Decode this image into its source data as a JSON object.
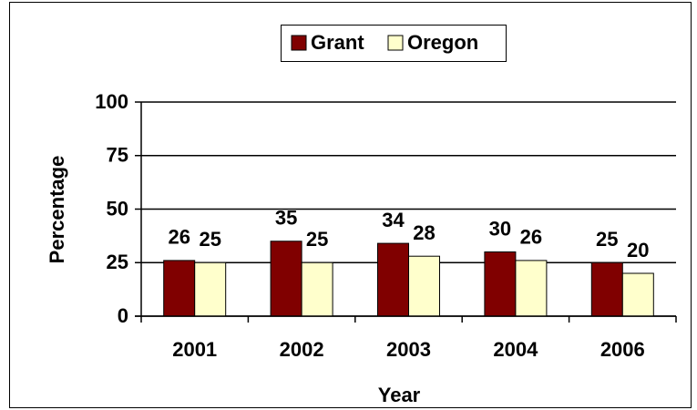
{
  "chart_data": {
    "type": "bar",
    "categories": [
      "2001",
      "2002",
      "2003",
      "2004",
      "2006"
    ],
    "series": [
      {
        "name": "Grant",
        "color": "#800000",
        "values": [
          26,
          35,
          34,
          30,
          25
        ]
      },
      {
        "name": "Oregon",
        "color": "#ffffcc",
        "values": [
          25,
          25,
          28,
          26,
          20
        ]
      }
    ],
    "ylim": [
      0,
      100
    ],
    "yticks": [
      0,
      25,
      50,
      75,
      100
    ],
    "grid": true,
    "xlabel": "Year",
    "ylabel": "Percentage",
    "legend": "top"
  }
}
